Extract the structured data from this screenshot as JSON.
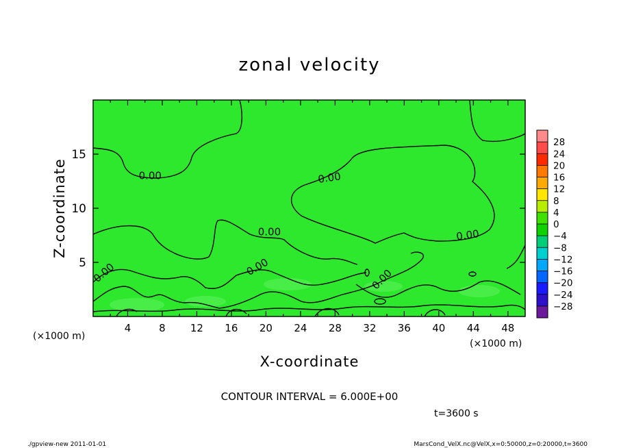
{
  "chart_data": {
    "type": "contour",
    "title": "zonal velocity",
    "xlabel": "X-coordinate",
    "ylabel": "Z-coordinate",
    "x_unit_note": "(×1000 m)",
    "y_unit_note": "(×1000 m)",
    "xlim": [
      0,
      50
    ],
    "ylim": [
      0,
      20
    ],
    "x_ticks": [
      4,
      8,
      12,
      16,
      20,
      24,
      28,
      32,
      36,
      40,
      44,
      48
    ],
    "y_ticks": [
      5,
      10,
      15
    ],
    "contour_labels": [
      {
        "text": "0.00",
        "x": 6.6,
        "z": 12.7
      },
      {
        "text": "0.00",
        "x": 27.4,
        "z": 12.5
      },
      {
        "text": "0.00",
        "x": 20.4,
        "z": 7.5
      },
      {
        "text": "0.00",
        "x": 43.4,
        "z": 7.2
      },
      {
        "text": "0.00",
        "x": 1.5,
        "z": 3.8
      },
      {
        "text": "0.00",
        "x": 19.2,
        "z": 4.3
      },
      {
        "text": "0.00",
        "x": 33.7,
        "z": 3.2
      }
    ],
    "contour_interval_text": "CONTOUR INTERVAL = 6.000E+00",
    "time_text": "t=3600 s",
    "colorbar": {
      "levels": [
        28,
        24,
        20,
        16,
        12,
        8,
        4,
        0,
        -4,
        -8,
        -12,
        -16,
        -20,
        -24,
        -28
      ],
      "colors": [
        "#ff8a8a",
        "#ff4b4b",
        "#ff2a00",
        "#ff7800",
        "#ffaa00",
        "#ffe600",
        "#b8ec00",
        "#40e000",
        "#10d200",
        "#00cf7a",
        "#00cfcf",
        "#00a8ff",
        "#0066ff",
        "#1a1aff",
        "#2e10c8",
        "#6a1a9a"
      ],
      "field_color": "#2ee82e"
    }
  },
  "footer": {
    "left": "./gpview-new   2011-01-01",
    "right": "MarsCond_VelX.nc@VelX,x=0:50000,z=0:20000,t=3600"
  }
}
